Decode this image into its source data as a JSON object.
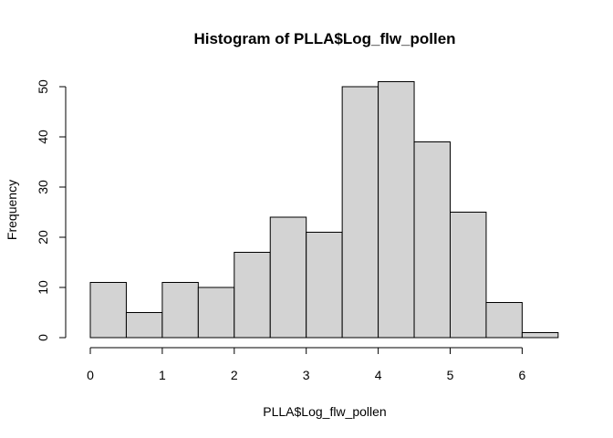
{
  "chart_data": {
    "type": "bar",
    "title": "Histogram of PLLA$Log_flw_pollen",
    "xlabel": "PLLA$Log_flw_pollen",
    "ylabel": "Frequency",
    "bin_edges": [
      0,
      0.5,
      1,
      1.5,
      2,
      2.5,
      3,
      3.5,
      4,
      4.5,
      5,
      5.5,
      6,
      6.5
    ],
    "values": [
      11,
      5,
      11,
      10,
      17,
      24,
      21,
      50,
      51,
      39,
      25,
      7,
      1
    ],
    "xticks": [
      "0",
      "1",
      "2",
      "3",
      "4",
      "5",
      "6"
    ],
    "yticks": [
      "0",
      "10",
      "20",
      "30",
      "40",
      "50"
    ],
    "xlim": [
      0,
      6.5
    ],
    "ylim": [
      0,
      50
    ],
    "bar_color": "#d3d3d3",
    "grid": false
  }
}
